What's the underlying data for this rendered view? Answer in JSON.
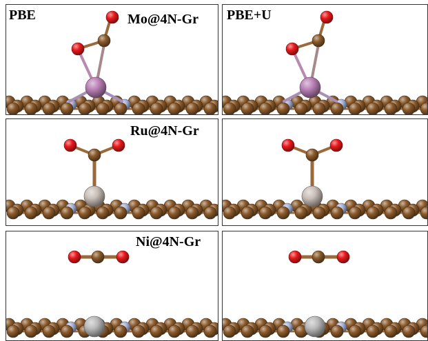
{
  "methods": {
    "left": "PBE",
    "right": "PBE+U"
  },
  "systems": [
    {
      "name": "Mo@4N-Gr",
      "metal_color": "#b980b6",
      "adsorbate": "CO2 bent, O bound to Mo (η2 C,O)"
    },
    {
      "name": "Ru@4N-Gr",
      "metal_color": "#c9beb8",
      "adsorbate": "CO2 bent, C bound to Ru"
    },
    {
      "name": "Ni@4N-Gr",
      "metal_color": "#b9b9b9",
      "adsorbate": "CO2 linear, physisorbed"
    }
  ],
  "colors": {
    "carbon": "#8b5a2b",
    "nitrogen": "#aab3d6",
    "oxygen": "#e8191b",
    "bond": "#9a6a3a",
    "frame": "#333333"
  }
}
